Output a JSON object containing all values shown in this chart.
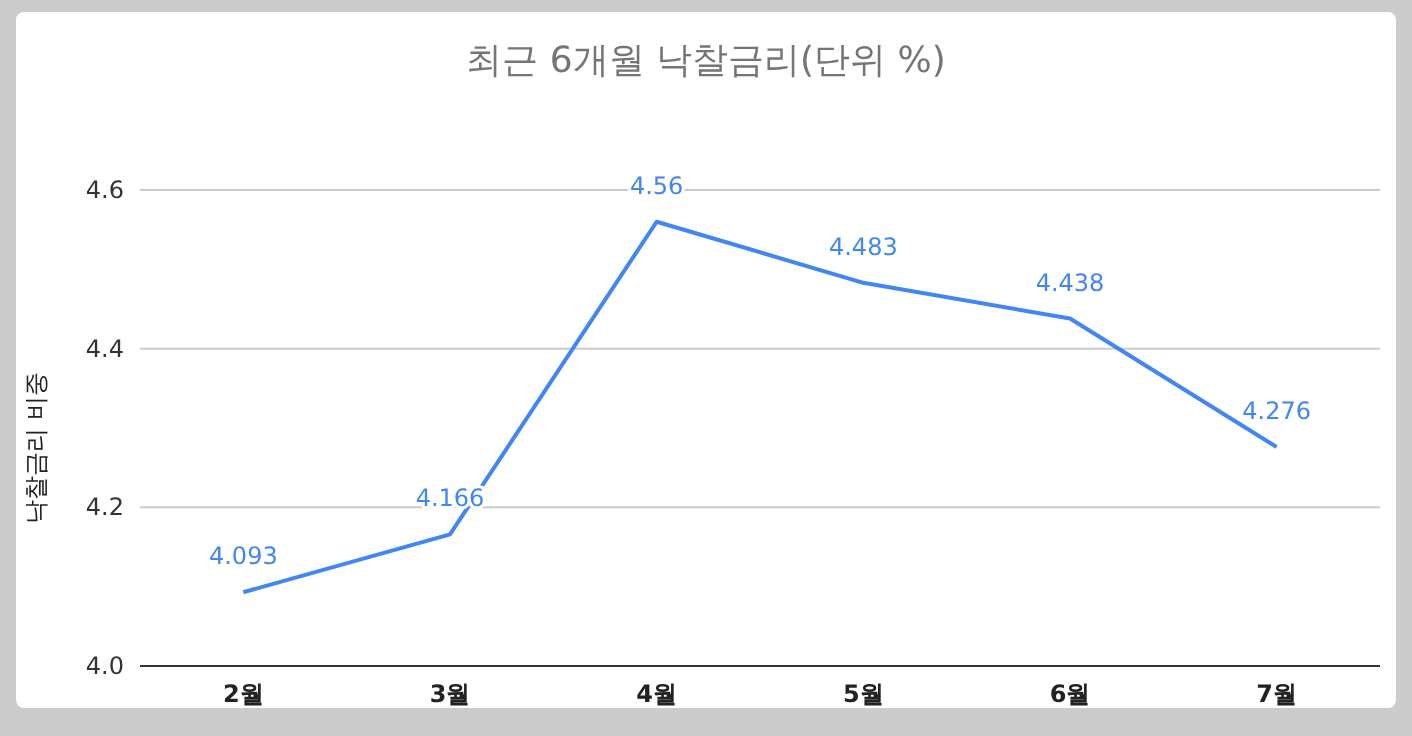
{
  "chart_data": {
    "type": "line",
    "title": "최근 6개월 낙찰금리(단위 %)",
    "ylabel": "낙찰금리 비중",
    "categories": [
      "2월",
      "3월",
      "4월",
      "5월",
      "6월",
      "7월"
    ],
    "series": [
      {
        "color": "#4285f4",
        "values": [
          4.093,
          4.166,
          4.56,
          4.483,
          4.438,
          4.276
        ]
      }
    ],
    "ylim": [
      4.0,
      4.6
    ],
    "yticks": [
      {
        "value": 4,
        "label": "4.0"
      },
      4.2,
      4.4,
      4.6
    ],
    "grid": "y",
    "data_labels": true,
    "marker": "none",
    "line_style": "solid"
  }
}
